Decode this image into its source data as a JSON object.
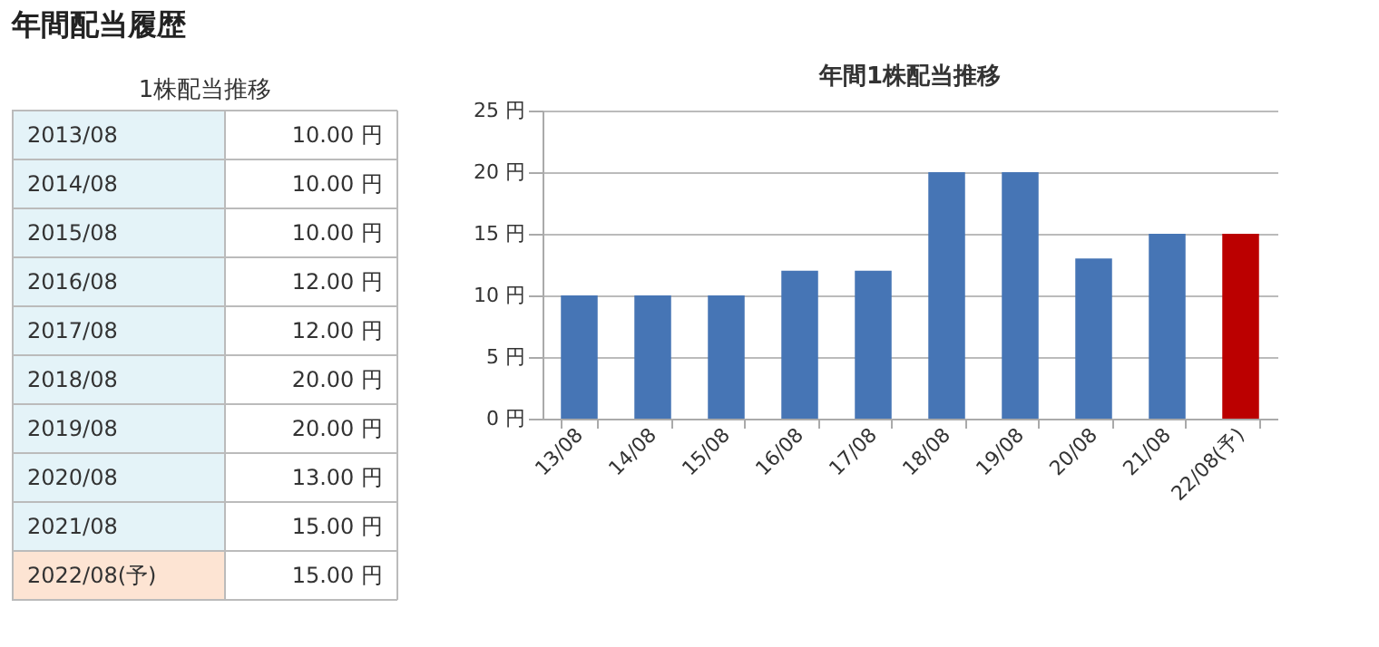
{
  "chart_data": [
    {
      "type": "other",
      "title": "年間配当履歴",
      "subtitle": "1株配当推移",
      "categories": [
        "2013/08",
        "2014/08",
        "2015/08",
        "2016/08",
        "2017/08",
        "2018/08",
        "2019/08",
        "2020/08",
        "2021/08",
        "2022/08(予)"
      ],
      "values": [
        10,
        10,
        10,
        12,
        12,
        20,
        20,
        13,
        15,
        15
      ],
      "value_labels": [
        "10.00 円",
        "10.00 円",
        "10.00 円",
        "12.00 円",
        "12.00 円",
        "20.00 円",
        "20.00 円",
        "13.00 円",
        "15.00 円",
        "15.00 円"
      ],
      "colors": [
        "#e4f3f8",
        "#e4f3f8",
        "#e4f3f8",
        "#e4f3f8",
        "#e4f3f8",
        "#e4f3f8",
        "#e4f3f8",
        "#e4f3f8",
        "#e4f3f8",
        "#fde4d3"
      ],
      "data_labels": true
    },
    {
      "type": "bar",
      "title": "年間1株配当推移",
      "categories": [
        "13/08",
        "14/08",
        "15/08",
        "16/08",
        "17/08",
        "18/08",
        "19/08",
        "20/08",
        "21/08",
        "22/08(予)"
      ],
      "values": [
        10,
        10,
        10,
        12,
        12,
        20,
        20,
        13,
        15,
        15
      ],
      "colors": [
        "#4675b5",
        "#4675b5",
        "#4675b5",
        "#4675b5",
        "#4675b5",
        "#4675b5",
        "#4675b5",
        "#4675b5",
        "#4675b5",
        "#bb0000"
      ],
      "ylim": [
        0,
        25
      ],
      "yticks": [
        {
          "value": 0,
          "label": "0 円"
        },
        {
          "value": 5,
          "label": "5 円"
        },
        {
          "value": 10,
          "label": "10 円"
        },
        {
          "value": 15,
          "label": "15 円"
        },
        {
          "value": 20,
          "label": "20 円"
        },
        {
          "value": 25,
          "label": "25 円"
        }
      ],
      "grid": "y"
    }
  ]
}
